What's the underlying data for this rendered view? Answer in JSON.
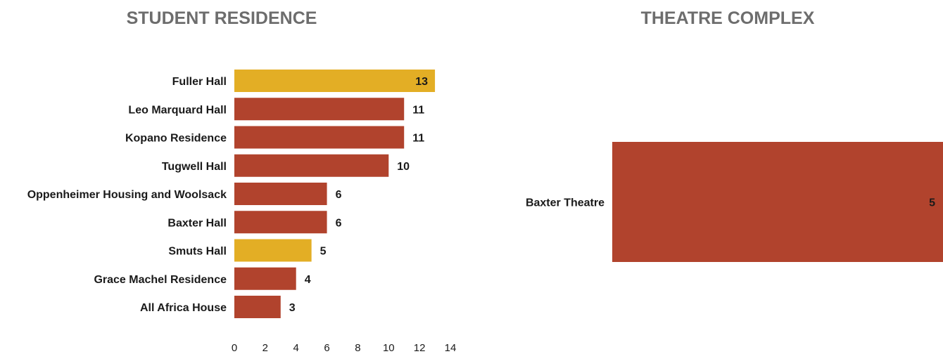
{
  "chart_data": [
    {
      "type": "bar",
      "orientation": "horizontal",
      "title": "STUDENT RESIDENCE",
      "categories": [
        "Fuller Hall",
        "Leo Marquard Hall",
        "Kopano Residence",
        "Tugwell Hall",
        "Oppenheimer Housing and Woolsack",
        "Baxter Hall",
        "Smuts Hall",
        "Grace Machel Residence",
        "All Africa House"
      ],
      "values": [
        13,
        11,
        11,
        10,
        6,
        6,
        5,
        4,
        3
      ],
      "bar_colors": [
        "#e3ae25",
        "#b1432d",
        "#b1432d",
        "#b1432d",
        "#b1432d",
        "#b1432d",
        "#e3ae25",
        "#b1432d",
        "#b1432d"
      ],
      "xlim": [
        0,
        14
      ],
      "xticks": [
        0,
        2,
        4,
        6,
        8,
        10,
        12,
        14
      ],
      "grid": false,
      "xlabel": "",
      "ylabel": ""
    },
    {
      "type": "bar",
      "orientation": "horizontal",
      "title": "THEATRE COMPLEX",
      "categories": [
        "Baxter Theatre"
      ],
      "values": [
        5
      ],
      "bar_colors": [
        "#b1432d"
      ],
      "grid": false,
      "xlabel": "",
      "ylabel": ""
    }
  ]
}
